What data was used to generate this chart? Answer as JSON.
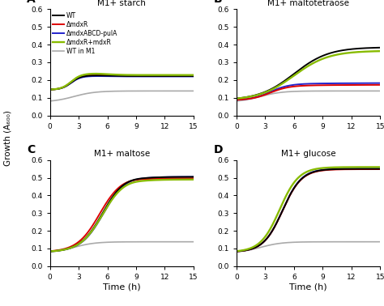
{
  "title_A": "M1+ starch",
  "title_B": "M1+ maltotetraose",
  "title_C": "M1+ maltose",
  "title_D": "M1+ glucose",
  "xlabel": "Time (h)",
  "ylabel": "Growth (A₆₀₀)",
  "ylim": [
    0,
    0.6
  ],
  "xlim": [
    0,
    15
  ],
  "xticks": [
    0,
    3,
    6,
    9,
    12,
    15
  ],
  "yticks": [
    0,
    0.1,
    0.2,
    0.3,
    0.4,
    0.5,
    0.6
  ],
  "colors": {
    "WT": "#000000",
    "mdxR": "#dd0000",
    "mdxABCD": "#2222cc",
    "mdxR_comp": "#88bb00",
    "WT_M1": "#aaaaaa"
  },
  "legend_labels": [
    "WT",
    "ΔmdxR",
    "ΔmdxABCD-pulA",
    "ΔmdxR+mdxR",
    "WT in M1"
  ],
  "panel_labels": [
    "A",
    "B",
    "C",
    "D"
  ],
  "lw_main": 1.4,
  "lw_gray": 1.2
}
